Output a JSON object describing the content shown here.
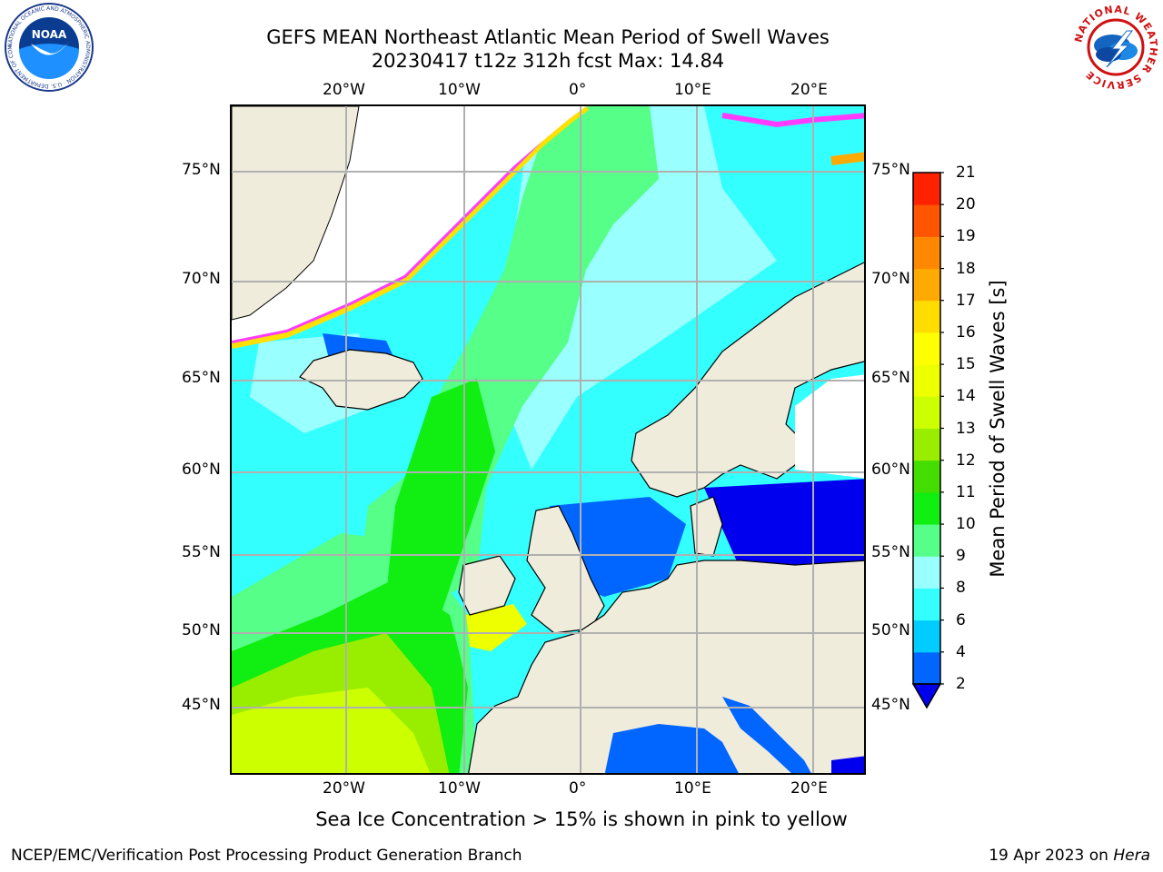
{
  "header": {
    "title_line1": "GEFS MEAN Northeast Atlantic Mean Period of Swell Waves",
    "title_line2": "20230417 t12z 312h fcst   Max: 14.84"
  },
  "logos": {
    "left": "noaa-logo",
    "left_ring_text": "NATIONAL OCEANIC AND ATMOSPHERIC ADMINISTRATION · U.S. DEPARTMENT OF COMMERCE",
    "left_center": "NOAA",
    "right": "nws-logo",
    "right_ring_text": "NATIONAL WEATHER SERVICE"
  },
  "map": {
    "lon_ticks": [
      "20°W",
      "10°W",
      "0°",
      "10°E",
      "20°E"
    ],
    "lat_ticks": [
      "75°N",
      "70°N",
      "65°N",
      "60°N",
      "55°N",
      "50°N",
      "45°N"
    ],
    "grid": true,
    "colors": {
      "land": "#efecdc",
      "ice_edge": "#ff3cff",
      "ice_edge2": "#ffe000",
      "coast": "#000000"
    }
  },
  "colorbar": {
    "label": "Mean Period of Swell Waves [s]",
    "ticks": [
      "2",
      "4",
      "6",
      "8",
      "9",
      "10",
      "11",
      "12",
      "13",
      "14",
      "15",
      "16",
      "17",
      "18",
      "19",
      "20",
      "21"
    ],
    "colors": [
      "#0066ff",
      "#00ccff",
      "#33ffff",
      "#99ffff",
      "#55ff88",
      "#11ee11",
      "#44dd00",
      "#99ee00",
      "#ccff00",
      "#eeff00",
      "#ffff00",
      "#ffdd00",
      "#ffaa00",
      "#ff8800",
      "#ff5500",
      "#ff2200"
    ],
    "extend_color": "#0000ee"
  },
  "note": "Sea Ice Concentration > 15% is shown in pink to yellow",
  "footer": {
    "left": "NCEP/EMC/Verification Post Processing Product Generation Branch",
    "date": "19 Apr 2023 on ",
    "machine": "Hera"
  }
}
